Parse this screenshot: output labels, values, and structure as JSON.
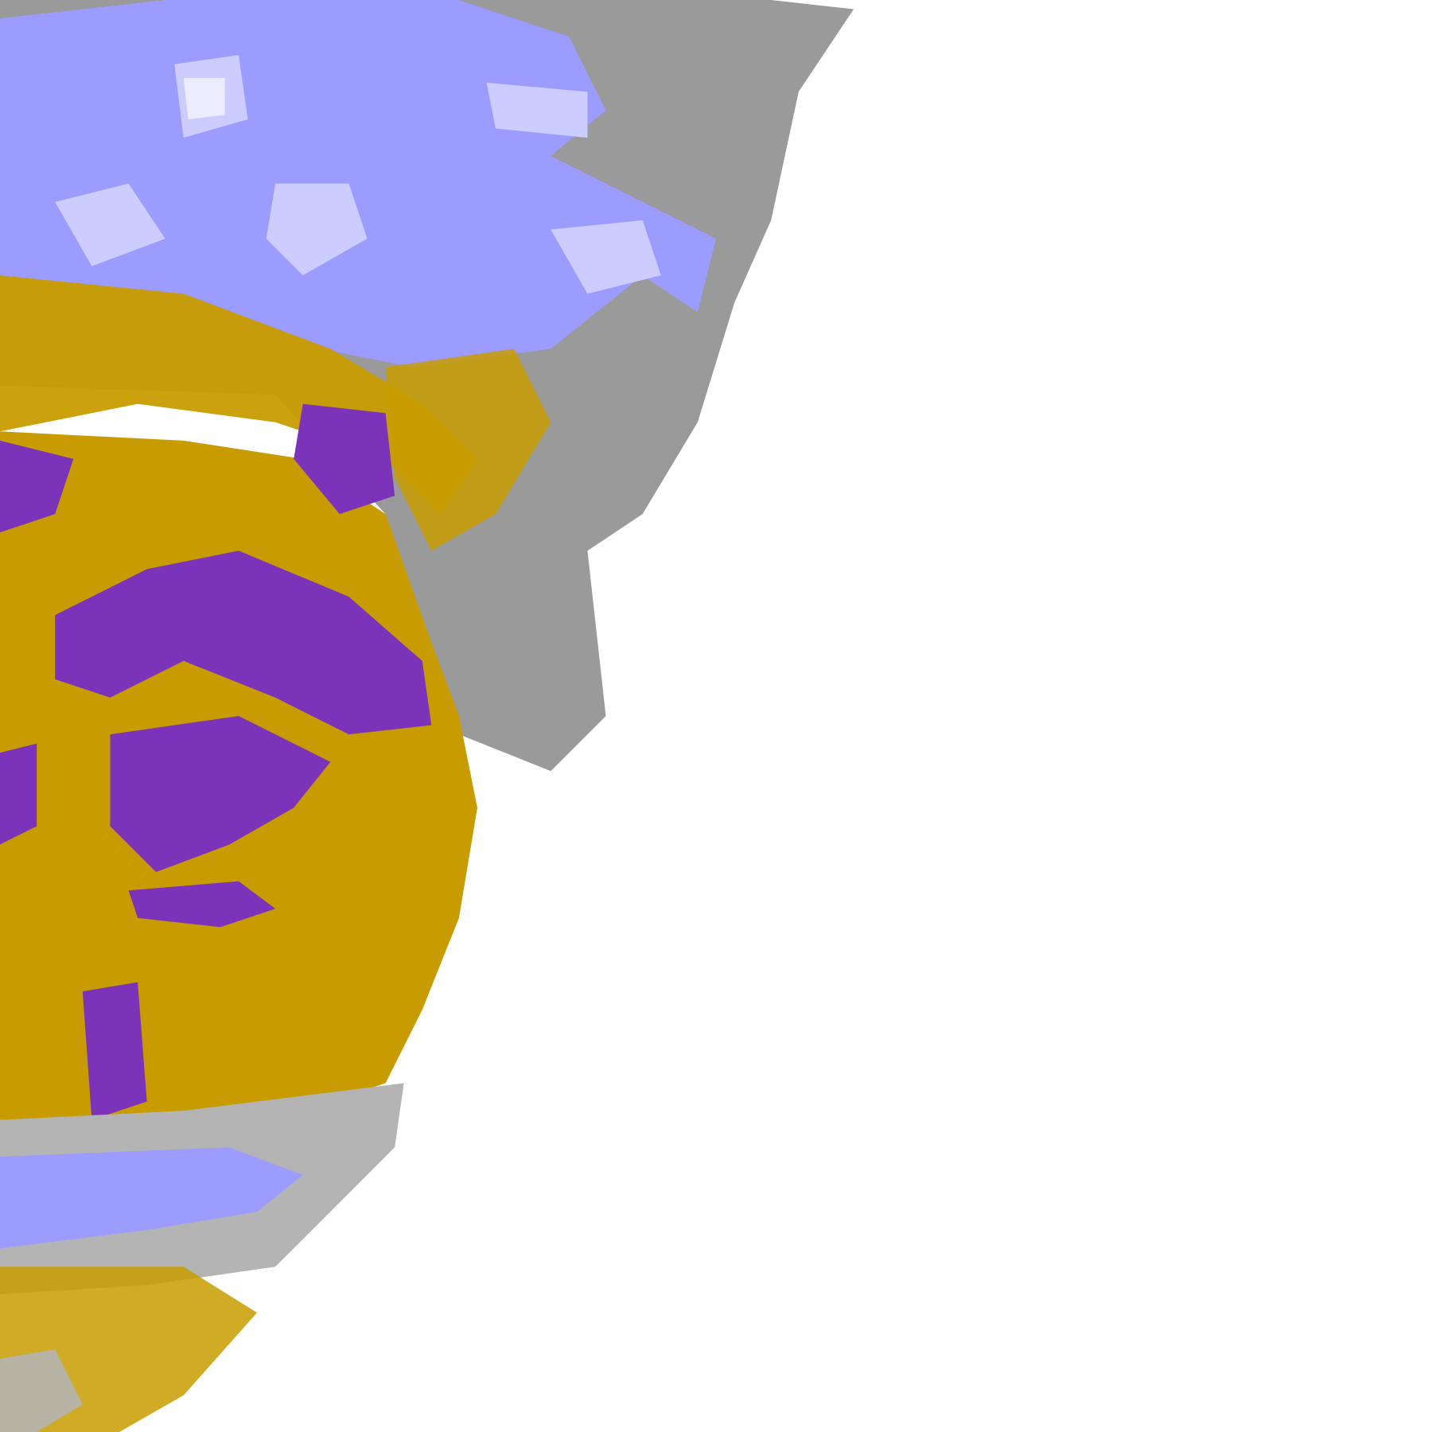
{
  "map": {
    "background": "#ffffff",
    "classes": [
      {
        "id": "cloud-light-gray",
        "color": "#b4b4b4"
      },
      {
        "id": "cloud-gray",
        "color": "#9a9a9a"
      },
      {
        "id": "cloud-blue",
        "color": "#9c9cff"
      },
      {
        "id": "cloud-lavender",
        "color": "#ccccff"
      },
      {
        "id": "cloud-pale",
        "color": "#ececff"
      },
      {
        "id": "cloud-gold",
        "color": "#c89c00"
      },
      {
        "id": "cloud-purple",
        "color": "#7b34b9"
      }
    ]
  }
}
